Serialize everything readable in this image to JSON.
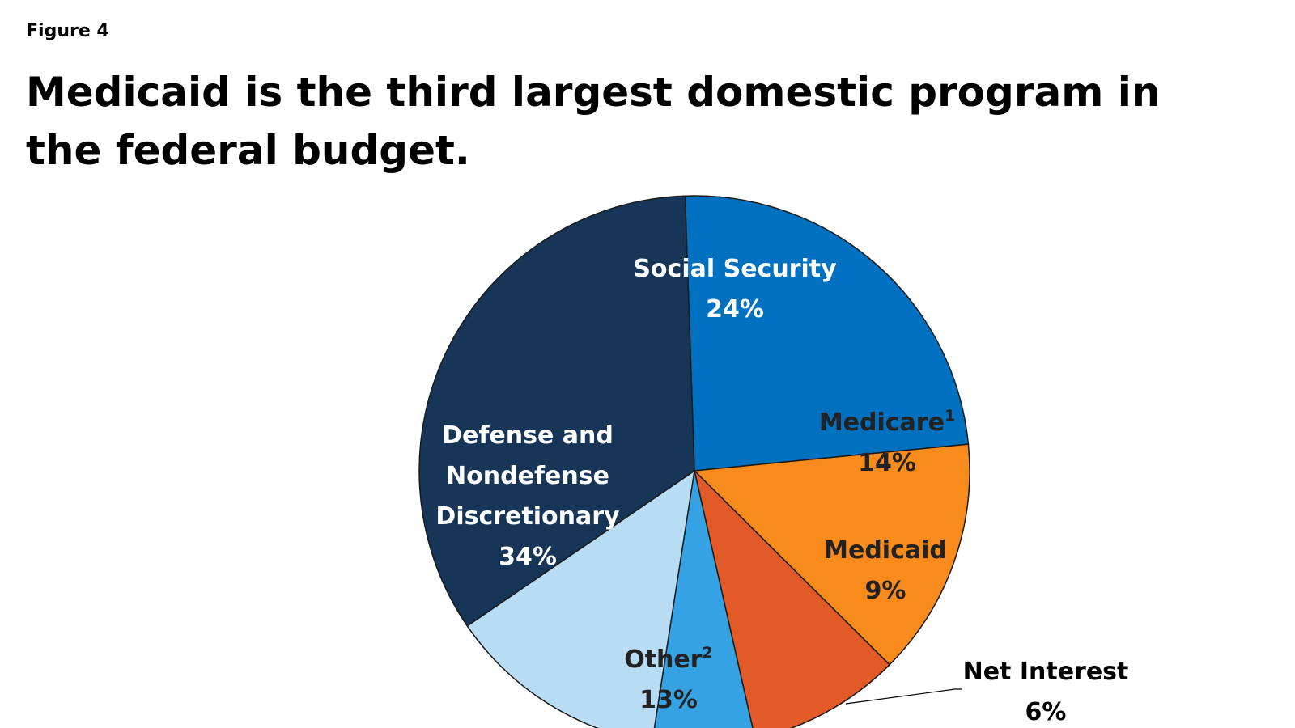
{
  "figure_label": "Figure 4",
  "chart_data": {
    "type": "pie",
    "title": "Medicaid is the third largest domestic program in the federal budget.",
    "slices": [
      {
        "label": "Social Security",
        "sup": "",
        "value": 24,
        "value_label": "24%",
        "color": "#0070c0",
        "text_color": "#ffffff"
      },
      {
        "label": "Medicare",
        "sup": "1",
        "value": 14,
        "value_label": "14%",
        "color": "#f98a1c",
        "text_color": "#222222"
      },
      {
        "label": "Medicaid",
        "sup": "",
        "value": 9,
        "value_label": "9%",
        "color": "#e15a28",
        "text_color": "#222222"
      },
      {
        "label": "Net Interest",
        "sup": "",
        "value": 6,
        "value_label": "6%",
        "color": "#35a3e3",
        "text_color": "#000000"
      },
      {
        "label": "Other",
        "sup": "2",
        "value": 13,
        "value_label": "13%",
        "color": "#b7dcf4",
        "text_color": "#222222"
      },
      {
        "label": "Defense and Nondefense Discretionary",
        "sup": "",
        "value": 34,
        "value_label": "34%",
        "color": "#163557",
        "text_color": "#ffffff"
      }
    ]
  }
}
